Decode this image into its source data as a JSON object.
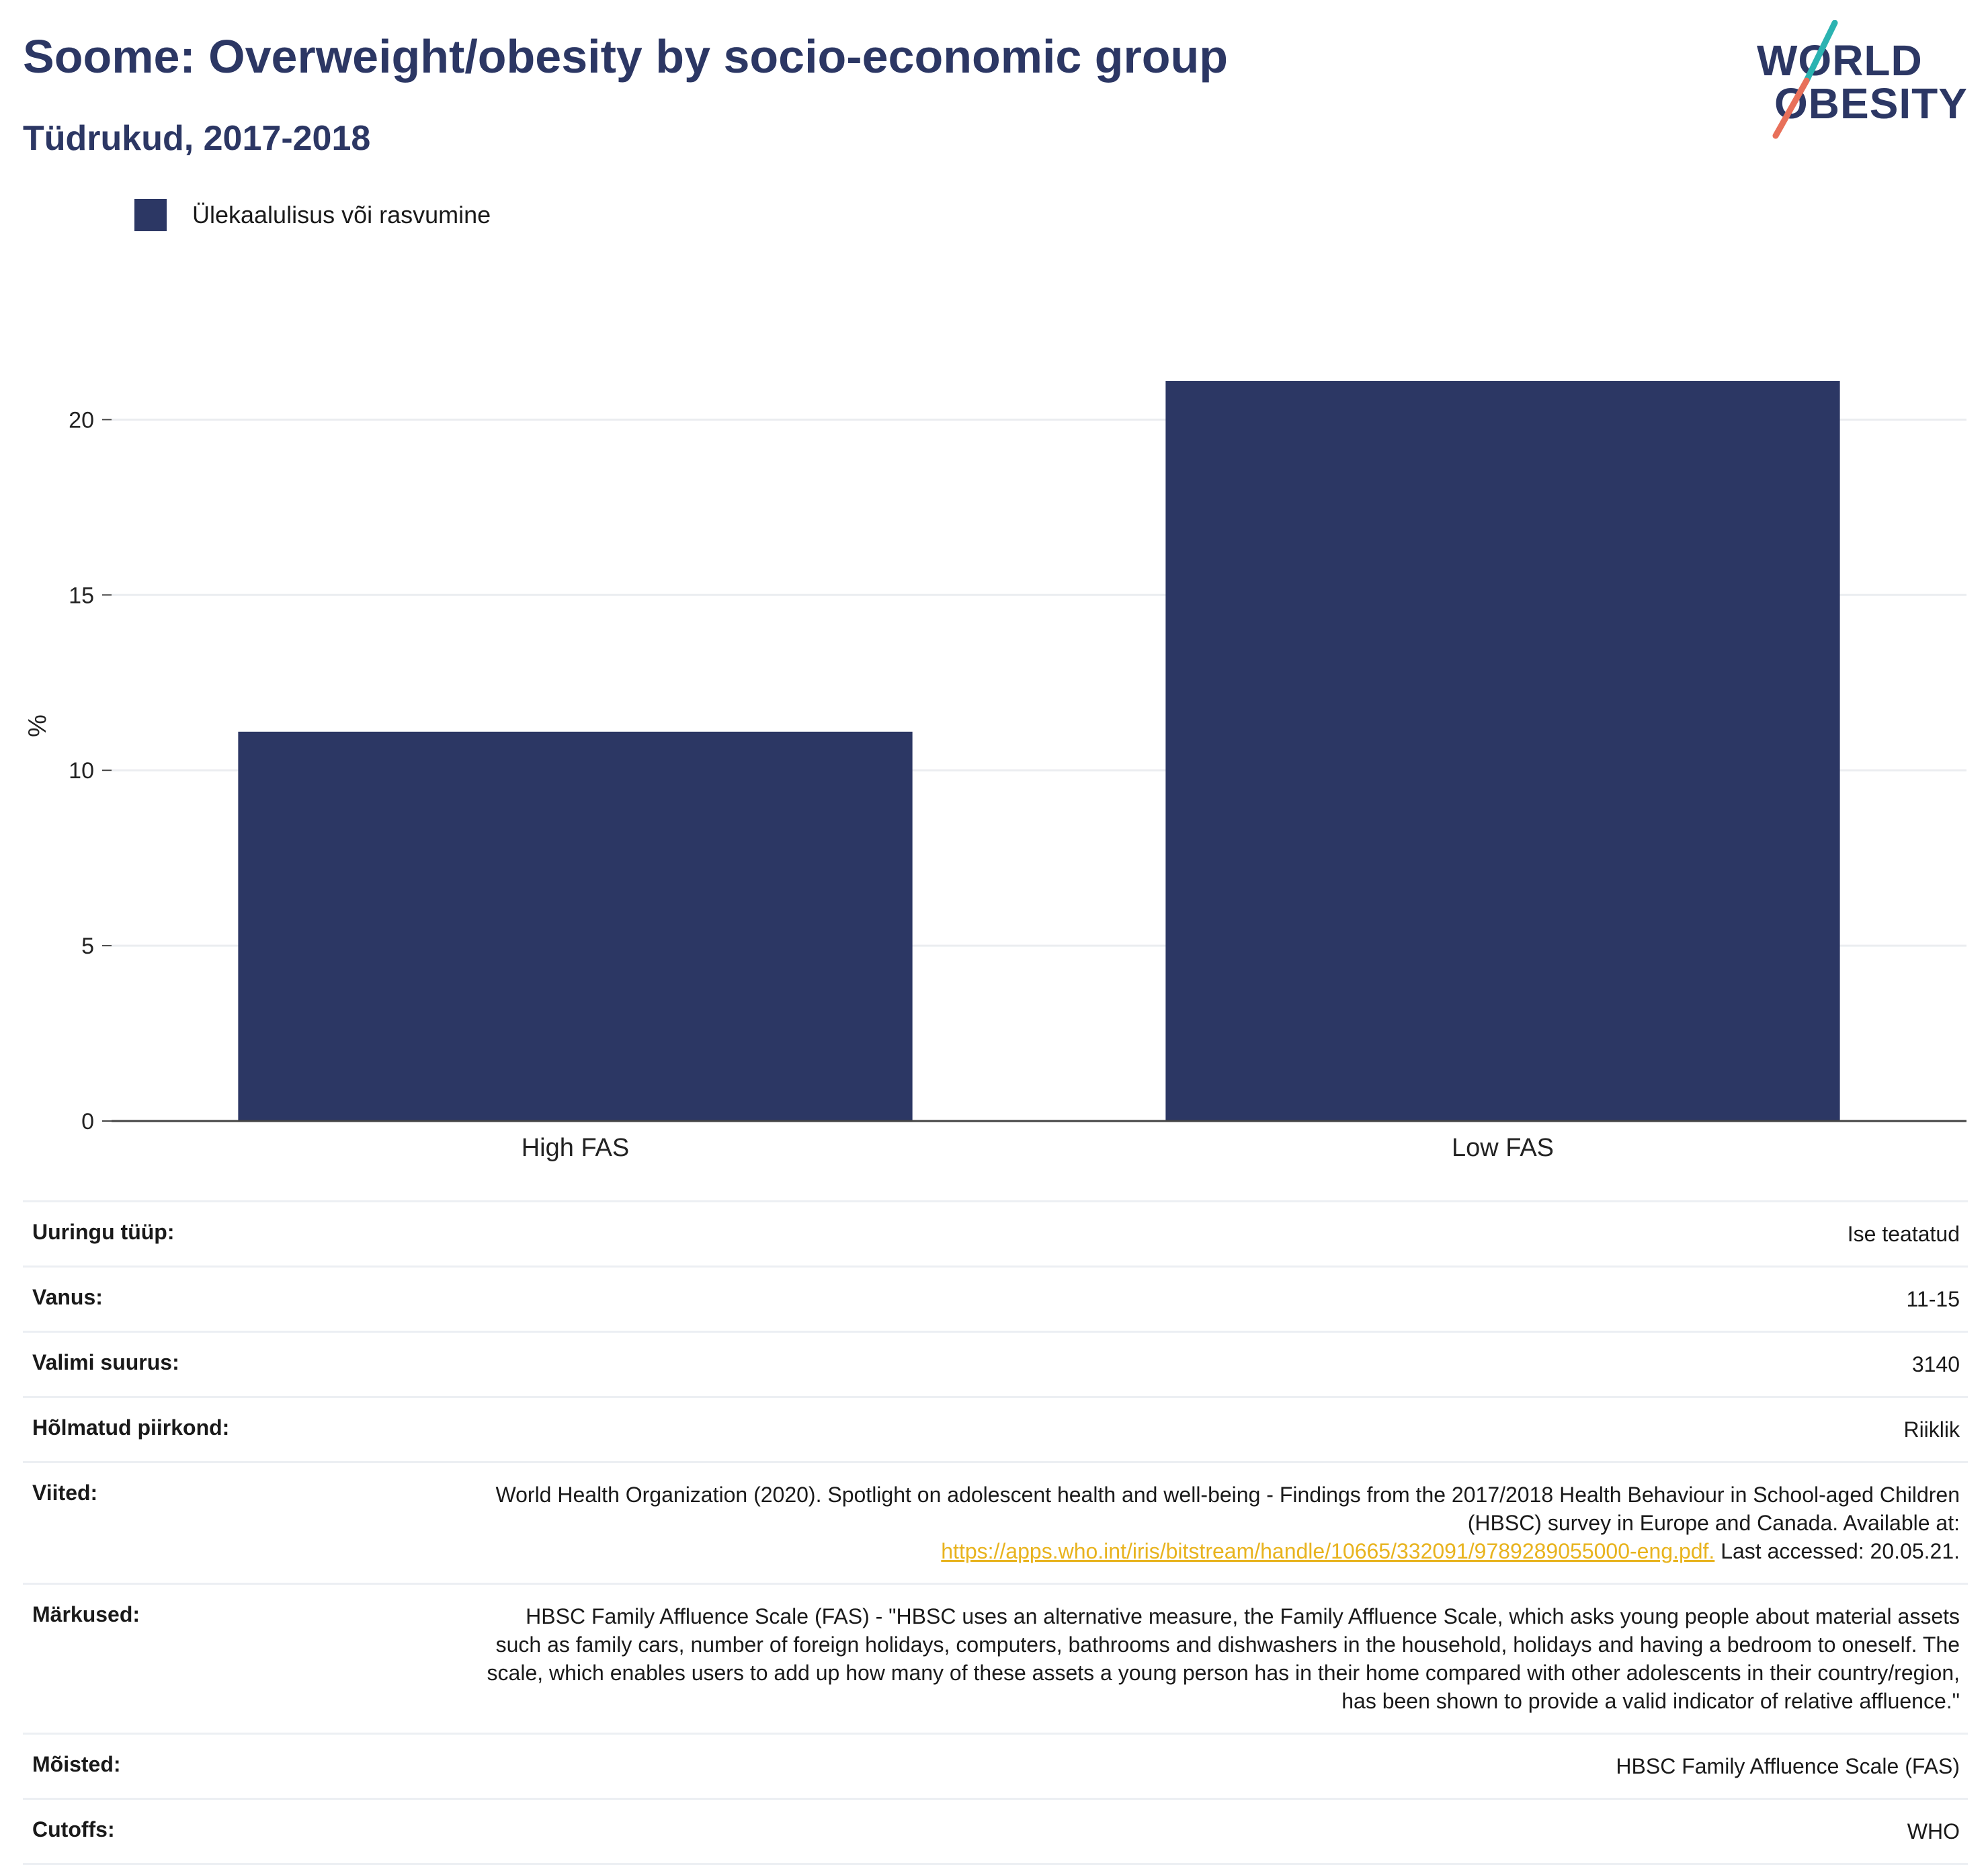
{
  "header": {
    "title": "Soome: Overweight/obesity by socio-economic group",
    "subtitle": "Tüdrukud, 2017-2018"
  },
  "logo": {
    "line1": "WORLD",
    "line2": "OBESITY",
    "colors": {
      "text": "#2c3764",
      "slash_top": "#2bb3b1",
      "slash_bottom": "#e8705a"
    }
  },
  "legend": {
    "label": "Ülekaalulisus või rasvumine",
    "color": "#2c3764"
  },
  "chart_data": {
    "type": "bar",
    "categories": [
      "High FAS",
      "Low FAS"
    ],
    "series": [
      {
        "name": "Ülekaalulisus või rasvumine",
        "values": [
          11.1,
          21.1
        ],
        "color": "#2c3764"
      }
    ],
    "xlabel": "",
    "ylabel": "%",
    "ylim": [
      0,
      22
    ],
    "yticks": [
      0,
      5,
      10,
      15,
      20
    ],
    "grid": true,
    "legend_position": "top-left"
  },
  "meta": {
    "survey_type": {
      "label": "Uuringu tüüp:",
      "value": "Ise teatatud"
    },
    "age": {
      "label": "Vanus:",
      "value": "11-15"
    },
    "sample_size": {
      "label": "Valimi suurus:",
      "value": "3140"
    },
    "area": {
      "label": "Hõlmatud piirkond:",
      "value": "Riiklik"
    },
    "references": {
      "label": "Viited:",
      "text": "World Health Organization (2020). Spotlight on adolescent health and well-being - Findings from the 2017/2018 Health Behaviour in School-aged Children (HBSC) survey in Europe and Canada. Available at:",
      "link": "https://apps.who.int/iris/bitstream/handle/10665/332091/9789289055000-eng.pdf.",
      "suffix": "Last accessed: 20.05.21."
    },
    "notes": {
      "label": "Märkused:",
      "value": "HBSC Family Affluence Scale (FAS) - \"HBSC uses an alternative measure, the Family Affluence Scale, which asks young people about material assets such as family cars, number of foreign holidays, computers, bathrooms and dishwashers in the household, holidays and having a bedroom to oneself. The scale, which enables users to add up how many of these assets a young person has in their home compared with other adolescents in their country/region, has been shown to provide a valid indicator of relative affluence.\""
    },
    "definitions": {
      "label": "Mõisted:",
      "value": "HBSC Family Affluence Scale (FAS)"
    },
    "cutoffs": {
      "label": "Cutoffs:",
      "value": "WHO"
    }
  }
}
